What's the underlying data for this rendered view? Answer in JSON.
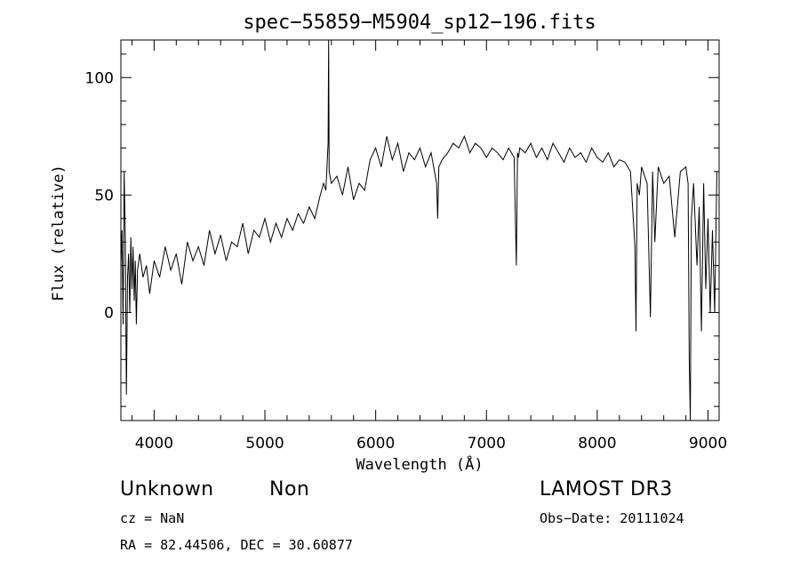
{
  "chart_data": {
    "type": "line",
    "title": "spec−55859−M5904_sp12−196.fits",
    "xlabel": "Wavelength (Å)",
    "ylabel": "Flux (relative)",
    "xlim": [
      3700,
      9100
    ],
    "ylim": [
      -46,
      116
    ],
    "xticks": [
      4000,
      5000,
      6000,
      7000,
      8000,
      9000
    ],
    "yticks": [
      0,
      50,
      100
    ],
    "grid": false,
    "legend": "none",
    "line_color": "#000000",
    "series": [
      {
        "x": [
          3700,
          3710,
          3720,
          3730,
          3740,
          3750,
          3760,
          3770,
          3780,
          3790,
          3800,
          3810,
          3820,
          3830,
          3840,
          3850,
          3870,
          3900,
          3930,
          3960,
          4000,
          4050,
          4100,
          4150,
          4200,
          4250,
          4300,
          4350,
          4400,
          4450,
          4500,
          4550,
          4600,
          4650,
          4700,
          4750,
          4800,
          4850,
          4900,
          4950,
          5000,
          5050,
          5100,
          5150,
          5200,
          5250,
          5300,
          5350,
          5400,
          5450,
          5500,
          5530,
          5550,
          5570,
          5575,
          5580,
          5600,
          5650,
          5700,
          5750,
          5800,
          5850,
          5900,
          5950,
          6000,
          6050,
          6100,
          6150,
          6200,
          6250,
          6300,
          6350,
          6400,
          6450,
          6500,
          6550,
          6560,
          6570,
          6600,
          6650,
          6700,
          6750,
          6800,
          6850,
          6900,
          6950,
          7000,
          7050,
          7100,
          7150,
          7200,
          7250,
          7270,
          7280,
          7290,
          7300,
          7350,
          7400,
          7450,
          7500,
          7550,
          7600,
          7650,
          7700,
          7750,
          7800,
          7850,
          7900,
          7950,
          8000,
          8050,
          8100,
          8150,
          8200,
          8250,
          8300,
          8340,
          8350,
          8360,
          8380,
          8400,
          8450,
          8480,
          8500,
          8520,
          8550,
          8600,
          8650,
          8700,
          8750,
          8800,
          8820,
          8830,
          8840,
          8850,
          8870,
          8900,
          8920,
          8940,
          8960,
          8980,
          9000,
          9020,
          9040,
          9060,
          9080
        ],
        "y": [
          20,
          35,
          -5,
          60,
          30,
          -35,
          15,
          25,
          0,
          32,
          10,
          28,
          5,
          22,
          -5,
          18,
          25,
          15,
          20,
          8,
          22,
          15,
          28,
          18,
          25,
          12,
          30,
          22,
          28,
          20,
          35,
          25,
          33,
          22,
          30,
          28,
          38,
          25,
          35,
          32,
          40,
          30,
          38,
          32,
          40,
          35,
          42,
          38,
          45,
          40,
          50,
          55,
          52,
          72,
          116,
          60,
          55,
          58,
          50,
          62,
          48,
          55,
          52,
          65,
          70,
          62,
          75,
          65,
          72,
          60,
          68,
          65,
          70,
          62,
          68,
          55,
          40,
          62,
          65,
          68,
          72,
          70,
          75,
          68,
          72,
          70,
          66,
          70,
          68,
          65,
          70,
          66,
          20,
          68,
          66,
          70,
          68,
          72,
          66,
          70,
          65,
          72,
          68,
          64,
          70,
          66,
          68,
          64,
          70,
          66,
          64,
          68,
          62,
          65,
          64,
          60,
          28,
          -8,
          55,
          50,
          62,
          55,
          -2,
          60,
          30,
          62,
          55,
          58,
          32,
          60,
          62,
          55,
          -20,
          -46,
          40,
          55,
          20,
          45,
          -8,
          55,
          10,
          40,
          0,
          35,
          0,
          60
        ]
      }
    ],
    "annotations": {
      "object_class": "Unknown",
      "object_subclass": "Non",
      "survey": "LAMOST DR3",
      "redshift": "cz = NaN",
      "obs_date": "Obs−Date: 20111024",
      "coords": "RA =  82.44506, DEC =  30.60877"
    }
  }
}
